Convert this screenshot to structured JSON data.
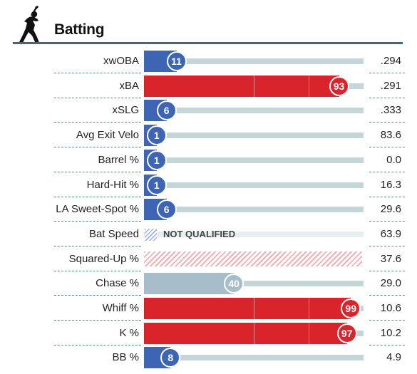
{
  "header": {
    "title": "Batting",
    "icon": "batter-silhouette-icon"
  },
  "colors": {
    "blue": "#3e64b4",
    "red": "#d9242c",
    "gray_blue": "#a7bdc9",
    "track": "#c5d6d8",
    "accent": "#3d6b72"
  },
  "rows": [
    {
      "label": "xwOBA",
      "percentile": 11,
      "value": ".294",
      "color": "blue"
    },
    {
      "label": "xBA",
      "percentile": 93,
      "value": ".291",
      "color": "red"
    },
    {
      "label": "xSLG",
      "percentile": 6,
      "value": ".333",
      "color": "blue"
    },
    {
      "label": "Avg Exit Velo",
      "percentile": 1,
      "value": "83.6",
      "color": "blue"
    },
    {
      "label": "Barrel %",
      "percentile": 1,
      "value": "0.0",
      "color": "blue"
    },
    {
      "label": "Hard-Hit %",
      "percentile": 1,
      "value": "16.3",
      "color": "blue"
    },
    {
      "label": "LA Sweet-Spot %",
      "percentile": 6,
      "value": "29.6",
      "color": "blue"
    },
    {
      "label": "Bat Speed",
      "percentile": null,
      "value": "63.9",
      "status": "NOT QUALIFIED"
    },
    {
      "label": "Squared-Up %",
      "percentile": null,
      "value": "37.6",
      "status": "hatched"
    },
    {
      "label": "Chase %",
      "percentile": 40,
      "value": "29.0",
      "color": "gray_blue"
    },
    {
      "label": "Whiff %",
      "percentile": 99,
      "value": "10.6",
      "color": "red"
    },
    {
      "label": "K %",
      "percentile": 97,
      "value": "10.2",
      "color": "red"
    },
    {
      "label": "BB %",
      "percentile": 8,
      "value": "4.9",
      "color": "blue"
    }
  ]
}
